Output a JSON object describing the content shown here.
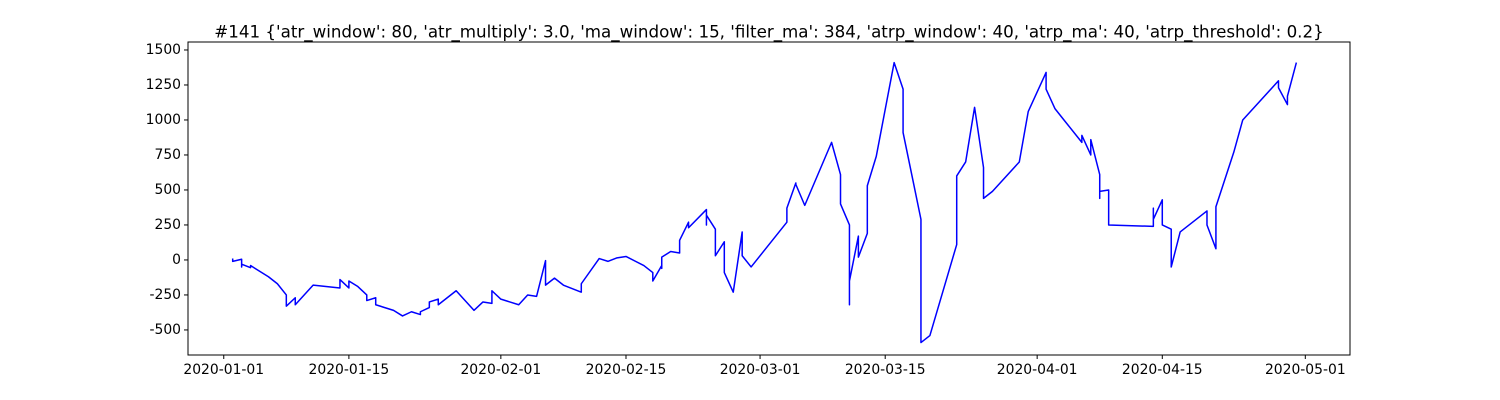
{
  "chart_data": {
    "type": "line",
    "title": "#141 {'atr_window': 80, 'atr_multiply': 3.0, 'ma_window': 15, 'filter_ma': 384, 'atrp_window': 40, 'atrp_ma': 40, 'atrp_threshold': 0.2}",
    "color": "#0000ff",
    "x": [
      "2020-01-02",
      "2020-01-02",
      "2020-01-03",
      "2020-01-03",
      "2020-01-03",
      "2020-01-04",
      "2020-01-04",
      "2020-01-06",
      "2020-01-07",
      "2020-01-08",
      "2020-01-08",
      "2020-01-09",
      "2020-01-09",
      "2020-01-11",
      "2020-01-14",
      "2020-01-14",
      "2020-01-15",
      "2020-01-15",
      "2020-01-15",
      "2020-01-16",
      "2020-01-17",
      "2020-01-17",
      "2020-01-18",
      "2020-01-18",
      "2020-01-18",
      "2020-01-20",
      "2020-01-21",
      "2020-01-22",
      "2020-01-23",
      "2020-01-23",
      "2020-01-24",
      "2020-01-24",
      "2020-01-25",
      "2020-01-25",
      "2020-01-27",
      "2020-01-29",
      "2020-01-30",
      "2020-01-31",
      "2020-01-31",
      "2020-01-31",
      "2020-02-01",
      "2020-02-03",
      "2020-02-04",
      "2020-02-05",
      "2020-02-06",
      "2020-02-06",
      "2020-02-06",
      "2020-02-07",
      "2020-02-08",
      "2020-02-10",
      "2020-02-10",
      "2020-02-12",
      "2020-02-13",
      "2020-02-14",
      "2020-02-15",
      "2020-02-17",
      "2020-02-18",
      "2020-02-18",
      "2020-02-19",
      "2020-02-19",
      "2020-02-19",
      "2020-02-20",
      "2020-02-21",
      "2020-02-21",
      "2020-02-22",
      "2020-02-22",
      "2020-02-24",
      "2020-02-24",
      "2020-02-24",
      "2020-02-25",
      "2020-02-25",
      "2020-02-25",
      "2020-02-26",
      "2020-02-26",
      "2020-02-26",
      "2020-02-27",
      "2020-02-28",
      "2020-02-28",
      "2020-02-29",
      "2020-03-04",
      "2020-03-04",
      "2020-03-05",
      "2020-03-05",
      "2020-03-06",
      "2020-03-09",
      "2020-03-10",
      "2020-03-10",
      "2020-03-11",
      "2020-03-11",
      "2020-03-11",
      "2020-03-11",
      "2020-03-12",
      "2020-03-12",
      "2020-03-13",
      "2020-03-13",
      "2020-03-14",
      "2020-03-16",
      "2020-03-17",
      "2020-03-17",
      "2020-03-18",
      "2020-03-19",
      "2020-03-19",
      "2020-03-20",
      "2020-03-23",
      "2020-03-23",
      "2020-03-24",
      "2020-03-25",
      "2020-03-26",
      "2020-03-26",
      "2020-03-27",
      "2020-03-30",
      "2020-03-31",
      "2020-04-02",
      "2020-04-02",
      "2020-04-03",
      "2020-04-04",
      "2020-04-06",
      "2020-04-06",
      "2020-04-07",
      "2020-04-07",
      "2020-04-08",
      "2020-04-08",
      "2020-04-08",
      "2020-04-09",
      "2020-04-09",
      "2020-04-14",
      "2020-04-14",
      "2020-04-14",
      "2020-04-15",
      "2020-04-15",
      "2020-04-15",
      "2020-04-16",
      "2020-04-16",
      "2020-04-17",
      "2020-04-20",
      "2020-04-20",
      "2020-04-21",
      "2020-04-21",
      "2020-04-23",
      "2020-04-24",
      "2020-04-28",
      "2020-04-28",
      "2020-04-29",
      "2020-04-29",
      "2020-04-30"
    ],
    "values": [
      10,
      -10,
      5,
      -50,
      -30,
      -55,
      -40,
      -120,
      -170,
      -250,
      -330,
      -270,
      -320,
      -180,
      -200,
      -140,
      -200,
      -160,
      -150,
      -190,
      -250,
      -290,
      -270,
      -280,
      -320,
      -360,
      -400,
      -370,
      -390,
      -370,
      -340,
      -300,
      -280,
      -320,
      -220,
      -360,
      -300,
      -310,
      -270,
      -220,
      -280,
      -320,
      -250,
      -260,
      -5,
      -50,
      -180,
      -130,
      -180,
      -230,
      -170,
      10,
      -10,
      15,
      25,
      -40,
      -90,
      -150,
      -40,
      -60,
      20,
      60,
      50,
      140,
      270,
      230,
      360,
      250,
      320,
      220,
      140,
      30,
      130,
      20,
      -90,
      -230,
      200,
      30,
      -50,
      270,
      370,
      550,
      540,
      390,
      840,
      610,
      400,
      250,
      -140,
      -320,
      -150,
      170,
      20,
      190,
      530,
      740,
      1410,
      1220,
      910,
      600,
      290,
      -590,
      -540,
      110,
      600,
      700,
      1090,
      660,
      440,
      490,
      700,
      1060,
      1340,
      1220,
      1080,
      1000,
      840,
      890,
      750,
      860,
      610,
      440,
      490,
      500,
      250,
      240,
      370,
      290,
      430,
      350,
      250,
      220,
      -50,
      200,
      350,
      250,
      80,
      380,
      770,
      1000,
      1280,
      1230,
      1110,
      1170,
      1410
    ],
    "xlim": [
      "2019-12-28",
      "2020-05-06"
    ],
    "xticks": [
      "2020-01-01",
      "2020-01-15",
      "2020-02-01",
      "2020-02-15",
      "2020-03-01",
      "2020-03-15",
      "2020-04-01",
      "2020-04-15",
      "2020-05-01"
    ],
    "ylim": [
      -679,
      1557
    ],
    "yticks": [
      -500,
      -250,
      0,
      250,
      500,
      750,
      1000,
      1250,
      1500
    ],
    "grid": false
  }
}
